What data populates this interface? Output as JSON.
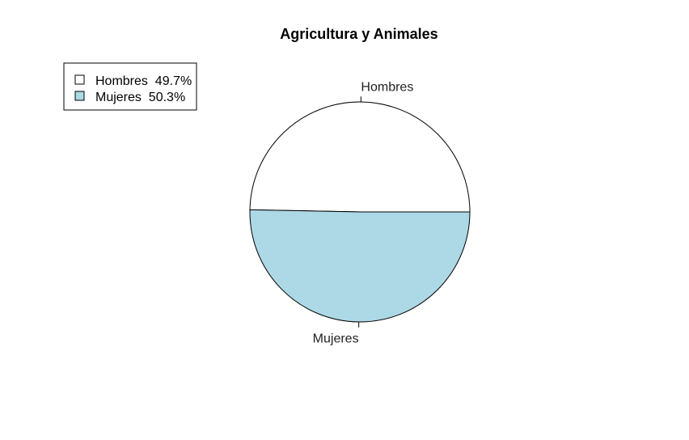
{
  "chart_data": {
    "type": "pie",
    "title": "Agricultura y Animales",
    "slices": [
      {
        "label": "Hombres",
        "value": 49.7,
        "legend_label": "Hombres  49.7%",
        "color": "#ffffff"
      },
      {
        "label": "Mujeres",
        "value": 50.3,
        "legend_label": "Mujeres  50.3%",
        "color": "#add8e6"
      }
    ],
    "start_angle_deg": 0,
    "direction": "counterclockwise",
    "legend_position": "top-left",
    "border_color": "#000000"
  }
}
